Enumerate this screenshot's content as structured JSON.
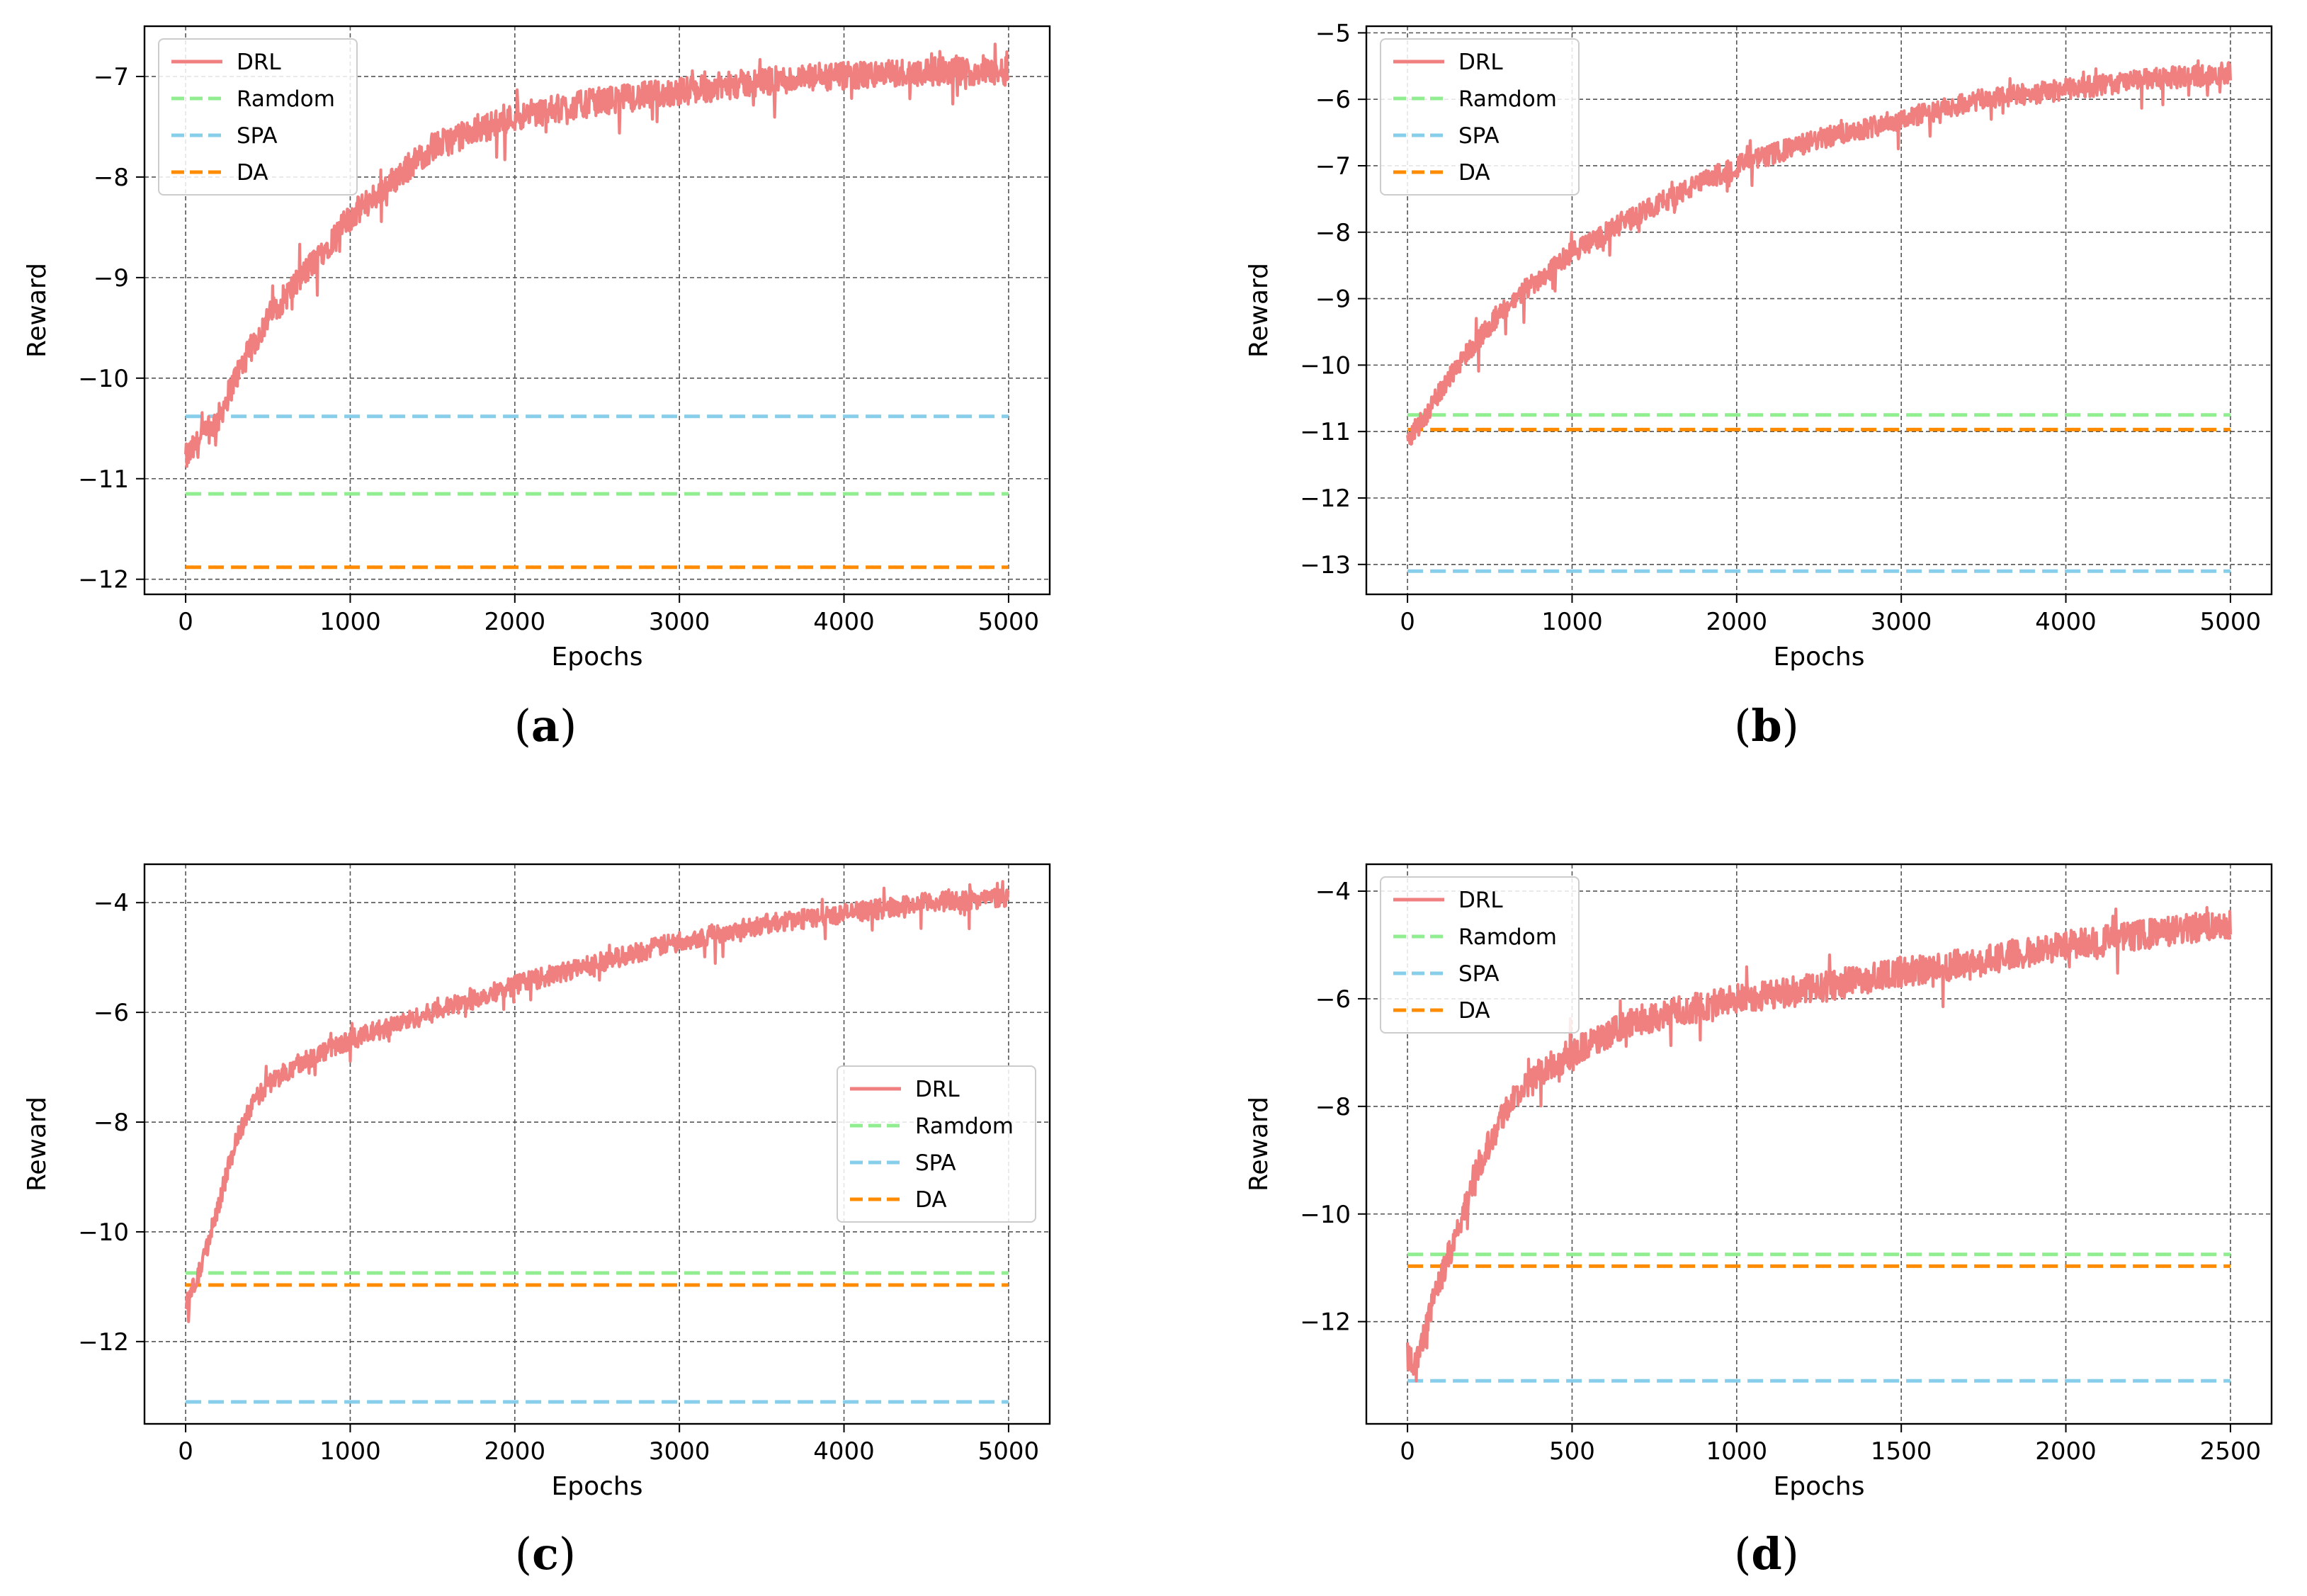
{
  "chart_data": [
    {
      "type": "line",
      "caption_letter": "a",
      "xlabel": "Epochs",
      "ylabel": "Reward",
      "xlim": [
        -250,
        5250
      ],
      "ylim": [
        -12.15,
        -6.5
      ],
      "xticks": [
        0,
        1000,
        2000,
        3000,
        4000,
        5000
      ],
      "yticks": [
        -12,
        -11,
        -10,
        -9,
        -8,
        -7
      ],
      "grid": true,
      "legend_position": "top-left",
      "series": [
        {
          "name": "DRL",
          "style": "solid",
          "color": "#f08080",
          "x": [
            0,
            100,
            200,
            300,
            500,
            700,
            1000,
            1500,
            2000,
            2500,
            3000,
            3500,
            4000,
            4500,
            5000
          ],
          "y": [
            -10.8,
            -10.6,
            -10.4,
            -10.0,
            -9.4,
            -9.0,
            -8.4,
            -7.7,
            -7.4,
            -7.25,
            -7.15,
            -7.05,
            -7.0,
            -6.95,
            -6.95
          ],
          "noise": 0.14
        },
        {
          "name": "Ramdom",
          "style": "dashed",
          "color": "#90ee90",
          "x": [
            0,
            5000
          ],
          "y": [
            -11.15,
            -11.15
          ]
        },
        {
          "name": "SPA",
          "style": "dashed",
          "color": "#87ceeb",
          "x": [
            0,
            5000
          ],
          "y": [
            -10.38,
            -10.38
          ]
        },
        {
          "name": "DA",
          "style": "dashed",
          "color": "#ff8c00",
          "x": [
            0,
            5000
          ],
          "y": [
            -11.88,
            -11.88
          ]
        }
      ]
    },
    {
      "type": "line",
      "caption_letter": "b",
      "xlabel": "Epochs",
      "ylabel": "Reward",
      "xlim": [
        -250,
        5250
      ],
      "ylim": [
        -13.45,
        -4.9
      ],
      "xticks": [
        0,
        1000,
        2000,
        3000,
        4000,
        5000
      ],
      "yticks": [
        -13,
        -12,
        -11,
        -10,
        -9,
        -8,
        -7,
        -6,
        -5
      ],
      "grid": true,
      "legend_position": "top-left",
      "series": [
        {
          "name": "DRL",
          "style": "solid",
          "color": "#f08080",
          "x": [
            0,
            100,
            200,
            300,
            500,
            700,
            1000,
            1500,
            2000,
            2500,
            3000,
            3500,
            4000,
            4500,
            5000
          ],
          "y": [
            -11.1,
            -10.8,
            -10.4,
            -10.0,
            -9.4,
            -8.9,
            -8.3,
            -7.6,
            -7.0,
            -6.6,
            -6.3,
            -6.0,
            -5.85,
            -5.7,
            -5.6
          ],
          "noise": 0.16
        },
        {
          "name": "Ramdom",
          "style": "dashed",
          "color": "#90ee90",
          "x": [
            0,
            5000
          ],
          "y": [
            -10.75,
            -10.75
          ]
        },
        {
          "name": "SPA",
          "style": "dashed",
          "color": "#87ceeb",
          "x": [
            0,
            5000
          ],
          "y": [
            -13.1,
            -13.1
          ]
        },
        {
          "name": "DA",
          "style": "dashed",
          "color": "#ff8c00",
          "x": [
            0,
            5000
          ],
          "y": [
            -10.97,
            -10.97
          ]
        }
      ]
    },
    {
      "type": "line",
      "caption_letter": "c",
      "xlabel": "Epochs",
      "ylabel": "Reward",
      "xlim": [
        -250,
        5250
      ],
      "ylim": [
        -13.5,
        -3.3
      ],
      "xticks": [
        0,
        1000,
        2000,
        3000,
        4000,
        5000
      ],
      "yticks": [
        -12,
        -10,
        -8,
        -6,
        -4
      ],
      "grid": true,
      "legend_position": "center-right",
      "series": [
        {
          "name": "DRL",
          "style": "solid",
          "color": "#f08080",
          "x": [
            0,
            50,
            100,
            200,
            300,
            400,
            500,
            700,
            1000,
            1500,
            2000,
            2500,
            3000,
            3500,
            4000,
            4500,
            5000
          ],
          "y": [
            -11.3,
            -11.0,
            -10.6,
            -9.5,
            -8.4,
            -7.7,
            -7.3,
            -6.9,
            -6.5,
            -6.0,
            -5.5,
            -5.1,
            -4.7,
            -4.4,
            -4.2,
            -4.0,
            -3.9
          ],
          "noise": 0.18
        },
        {
          "name": "Ramdom",
          "style": "dashed",
          "color": "#90ee90",
          "x": [
            0,
            5000
          ],
          "y": [
            -10.75,
            -10.75
          ]
        },
        {
          "name": "SPA",
          "style": "dashed",
          "color": "#87ceeb",
          "x": [
            0,
            5000
          ],
          "y": [
            -13.1,
            -13.1
          ]
        },
        {
          "name": "DA",
          "style": "dashed",
          "color": "#ff8c00",
          "x": [
            0,
            5000
          ],
          "y": [
            -10.97,
            -10.97
          ]
        }
      ]
    },
    {
      "type": "line",
      "caption_letter": "d",
      "xlabel": "Epochs",
      "ylabel": "Reward",
      "xlim": [
        -125,
        2625
      ],
      "ylim": [
        -13.9,
        -3.5
      ],
      "xticks": [
        0,
        500,
        1000,
        1500,
        2000,
        2500
      ],
      "yticks": [
        -12,
        -10,
        -8,
        -6,
        -4
      ],
      "grid": true,
      "legend_position": "top-left",
      "series": [
        {
          "name": "DRL",
          "style": "solid",
          "color": "#f08080",
          "x": [
            0,
            25,
            50,
            100,
            150,
            200,
            300,
            400,
            500,
            700,
            1000,
            1250,
            1500,
            1750,
            2000,
            2250,
            2500
          ],
          "y": [
            -12.6,
            -12.8,
            -12.2,
            -11.2,
            -10.4,
            -9.3,
            -8.0,
            -7.4,
            -7.0,
            -6.4,
            -6.0,
            -5.8,
            -5.5,
            -5.3,
            -5.0,
            -4.8,
            -4.6
          ],
          "noise": 0.28
        },
        {
          "name": "Ramdom",
          "style": "dashed",
          "color": "#90ee90",
          "x": [
            0,
            2500
          ],
          "y": [
            -10.75,
            -10.75
          ]
        },
        {
          "name": "SPA",
          "style": "dashed",
          "color": "#87ceeb",
          "x": [
            0,
            2500
          ],
          "y": [
            -13.1,
            -13.1
          ]
        },
        {
          "name": "DA",
          "style": "dashed",
          "color": "#ff8c00",
          "x": [
            0,
            2500
          ],
          "y": [
            -10.97,
            -10.97
          ]
        }
      ]
    }
  ]
}
